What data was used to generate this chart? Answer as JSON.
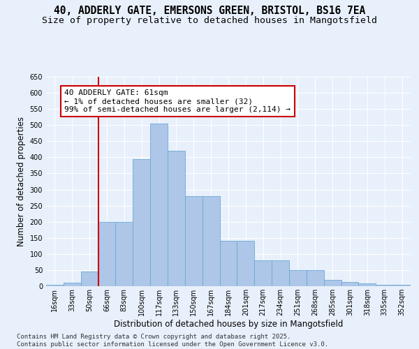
{
  "title_line1": "40, ADDERLY GATE, EMERSONS GREEN, BRISTOL, BS16 7EA",
  "title_line2": "Size of property relative to detached houses in Mangotsfield",
  "xlabel": "Distribution of detached houses by size in Mangotsfield",
  "ylabel": "Number of detached properties",
  "bar_labels": [
    "16sqm",
    "33sqm",
    "50sqm",
    "66sqm",
    "83sqm",
    "100sqm",
    "117sqm",
    "133sqm",
    "150sqm",
    "167sqm",
    "184sqm",
    "201sqm",
    "217sqm",
    "234sqm",
    "251sqm",
    "268sqm",
    "285sqm",
    "301sqm",
    "318sqm",
    "335sqm",
    "352sqm"
  ],
  "bar_values": [
    5,
    10,
    45,
    200,
    200,
    395,
    505,
    420,
    280,
    280,
    140,
    140,
    80,
    80,
    50,
    50,
    20,
    12,
    8,
    5,
    5
  ],
  "bar_color": "#aec6e8",
  "bar_edgecolor": "#6aaad4",
  "vline_x_index": 2,
  "vline_color": "#cc0000",
  "annotation_text": "40 ADDERLY GATE: 61sqm\n← 1% of detached houses are smaller (32)\n99% of semi-detached houses are larger (2,114) →",
  "annotation_box_facecolor": "#ffffff",
  "annotation_box_edgecolor": "#cc0000",
  "ylim": [
    0,
    650
  ],
  "yticks": [
    0,
    50,
    100,
    150,
    200,
    250,
    300,
    350,
    400,
    450,
    500,
    550,
    600,
    650
  ],
  "bg_color": "#e8f0fb",
  "plot_bg_color": "#e8f0fb",
  "footer_line1": "Contains HM Land Registry data © Crown copyright and database right 2025.",
  "footer_line2": "Contains public sector information licensed under the Open Government Licence v3.0.",
  "title_fontsize": 10.5,
  "subtitle_fontsize": 9.5,
  "axis_label_fontsize": 8.5,
  "tick_fontsize": 7,
  "annotation_fontsize": 8,
  "footer_fontsize": 6.5,
  "grid_color": "#ffffff"
}
